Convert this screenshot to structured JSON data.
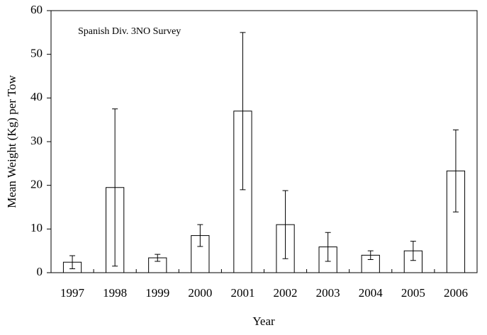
{
  "chart_data": {
    "type": "bar",
    "annotation": "Spanish Div. 3NO Survey",
    "x_label": "Year",
    "y_label": "Mean Weight (Kg) per Tow",
    "categories": [
      "1997",
      "1998",
      "1999",
      "2000",
      "2001",
      "2002",
      "2003",
      "2004",
      "2005",
      "2006"
    ],
    "values": [
      2.4,
      19.5,
      3.4,
      8.5,
      37,
      11,
      5.9,
      4,
      5,
      23.3
    ],
    "errors": [
      1.5,
      18,
      0.8,
      2.5,
      18,
      7.8,
      3.3,
      1,
      2.2,
      9.4
    ],
    "color": "#ffffff",
    "ylim": [
      0,
      60
    ],
    "yticks": [
      0,
      10,
      20,
      30,
      40,
      50,
      60
    ],
    "grid": false
  }
}
